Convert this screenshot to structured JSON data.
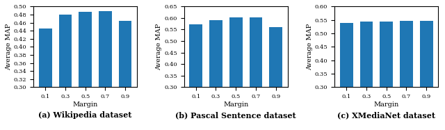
{
  "chart_data": [
    {
      "type": "bar",
      "title": "(a) Wikipedia dataset",
      "x_label": "Margin",
      "y_label": "Average MAP",
      "categories": [
        "0.1",
        "0.3",
        "0.5",
        "0.7",
        "0.9"
      ],
      "values": [
        0.445,
        0.48,
        0.487,
        0.488,
        0.465
      ],
      "ylim": [
        0.3,
        0.5
      ],
      "yticks": [
        {
          "value": 0.3,
          "label": "0.30"
        },
        0.32,
        0.34,
        0.36,
        0.38,
        {
          "value": 0.4,
          "label": "0.40"
        },
        0.42,
        0.44,
        0.46,
        0.48,
        {
          "value": 0.5,
          "label": "0.50"
        }
      ],
      "grid": false
    },
    {
      "type": "bar",
      "title": "(b) Pascal Sentence dataset",
      "x_label": "Margin",
      "y_label": "Average MAP",
      "categories": [
        "0.1",
        "0.3",
        "0.5",
        "0.7",
        "0.9"
      ],
      "values": [
        0.573,
        0.592,
        0.602,
        0.602,
        0.562
      ],
      "ylim": [
        0.3,
        0.65
      ],
      "yticks": [
        {
          "value": 0.3,
          "label": "0.30"
        },
        0.35,
        {
          "value": 0.4,
          "label": "0.40"
        },
        0.45,
        {
          "value": 0.5,
          "label": "0.50"
        },
        0.55,
        {
          "value": 0.6,
          "label": "0.60"
        },
        0.65
      ],
      "grid": false
    },
    {
      "type": "bar",
      "title": "(c) XMediaNet dataset",
      "x_label": "Margin",
      "y_label": "Average MAP",
      "categories": [
        "0.1",
        "0.3",
        "0.5",
        "0.7",
        "0.9"
      ],
      "values": [
        0.54,
        0.545,
        0.545,
        0.546,
        0.546
      ],
      "ylim": [
        0.3,
        0.6
      ],
      "yticks": [
        {
          "value": 0.3,
          "label": "0.30"
        },
        0.35,
        {
          "value": 0.4,
          "label": "0.40"
        },
        0.45,
        {
          "value": 0.5,
          "label": "0.50"
        },
        0.55,
        {
          "value": 0.6,
          "label": "0.60"
        }
      ],
      "grid": false
    }
  ]
}
